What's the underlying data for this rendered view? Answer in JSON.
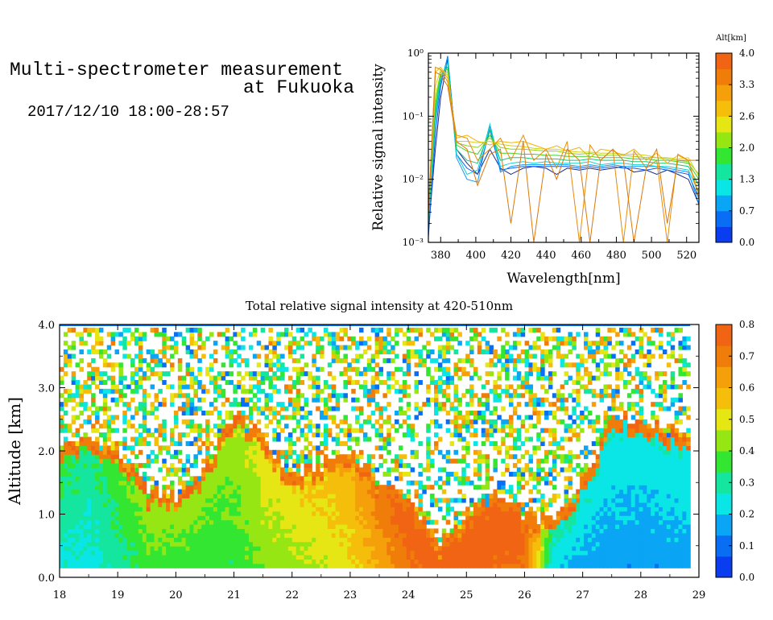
{
  "header": {
    "title_line1": "Multi-spectrometer measurement",
    "title_line2": "at Fukuoka",
    "subtitle": "2017/12/10 18:00-28:57"
  },
  "chart_data": [
    {
      "type": "line",
      "title": "",
      "xlabel": "Wavelength[nm]",
      "ylabel": "Relative signal intensity",
      "yscale": "log",
      "xlim": [
        373,
        527
      ],
      "ylim": [
        0.001,
        1
      ],
      "xticks": [
        "380",
        "400",
        "420",
        "440",
        "460",
        "480",
        "500",
        "520"
      ],
      "yticks": [
        "10⁻³",
        "10⁻²",
        "10⁻¹",
        "10⁰"
      ],
      "colorbar": {
        "label": "Alt[km]",
        "ticks": [
          "0.0",
          "0.7",
          "1.3",
          "2.0",
          "2.6",
          "3.3",
          "4.0"
        ],
        "colors": [
          "#0a3cf0",
          "#0a6ef5",
          "#0aa5f5",
          "#0ae6e6",
          "#14e6a0",
          "#32e632",
          "#96e614",
          "#e6e614",
          "#f5be0a",
          "#f5a00a",
          "#f07d0a",
          "#f06414"
        ]
      },
      "series": [
        {
          "color": "#1a2a8a",
          "x": [
            373,
            377,
            380,
            384,
            389,
            395,
            401,
            408,
            414,
            420,
            427,
            433,
            440,
            446,
            452,
            459,
            465,
            471,
            478,
            484,
            490,
            497,
            503,
            509,
            515,
            521,
            527
          ],
          "y": [
            0.0015,
            0.03,
            0.2,
            0.8,
            0.03,
            0.018,
            0.012,
            0.03,
            0.015,
            0.012,
            0.015,
            0.016,
            0.015,
            0.012,
            0.015,
            0.014,
            0.015,
            0.014,
            0.015,
            0.016,
            0.013,
            0.014,
            0.012,
            0.014,
            0.012,
            0.01,
            0.004
          ]
        },
        {
          "color": "#0a5af0",
          "x": [
            373,
            377,
            380,
            384,
            389,
            395,
            401,
            408,
            414,
            420,
            427,
            433,
            440,
            446,
            452,
            459,
            465,
            471,
            478,
            484,
            490,
            497,
            503,
            509,
            515,
            521,
            527
          ],
          "y": [
            0.0012,
            0.05,
            0.3,
            0.9,
            0.025,
            0.015,
            0.012,
            0.06,
            0.014,
            0.015,
            0.016,
            0.016,
            0.016,
            0.016,
            0.016,
            0.015,
            0.016,
            0.015,
            0.016,
            0.015,
            0.015,
            0.014,
            0.015,
            0.014,
            0.013,
            0.012,
            0.005
          ]
        },
        {
          "color": "#0a96f5",
          "x": [
            373,
            377,
            380,
            384,
            389,
            395,
            401,
            408,
            414,
            420,
            427,
            433,
            440,
            446,
            452,
            459,
            465,
            471,
            478,
            484,
            490,
            497,
            503,
            509,
            515,
            521,
            527
          ],
          "y": [
            0.002,
            0.08,
            0.35,
            0.85,
            0.022,
            0.01,
            0.009,
            0.07,
            0.013,
            0.016,
            0.017,
            0.017,
            0.017,
            0.017,
            0.017,
            0.016,
            0.017,
            0.016,
            0.017,
            0.016,
            0.016,
            0.016,
            0.016,
            0.015,
            0.014,
            0.013,
            0.004
          ]
        },
        {
          "color": "#10d2d2",
          "x": [
            373,
            377,
            380,
            384,
            389,
            395,
            401,
            408,
            414,
            420,
            427,
            433,
            440,
            446,
            452,
            459,
            465,
            471,
            478,
            484,
            490,
            497,
            503,
            509,
            515,
            521,
            527
          ],
          "y": [
            0.002,
            0.1,
            0.4,
            0.7,
            0.025,
            0.012,
            0.014,
            0.075,
            0.016,
            0.018,
            0.019,
            0.018,
            0.019,
            0.018,
            0.018,
            0.018,
            0.019,
            0.017,
            0.018,
            0.018,
            0.017,
            0.017,
            0.016,
            0.016,
            0.015,
            0.014,
            0.006
          ]
        },
        {
          "color": "#14c878",
          "x": [
            373,
            377,
            380,
            384,
            389,
            395,
            401,
            408,
            414,
            420,
            427,
            433,
            440,
            446,
            452,
            459,
            465,
            471,
            478,
            484,
            490,
            497,
            503,
            509,
            515,
            521,
            527
          ],
          "y": [
            0.0025,
            0.12,
            0.45,
            0.6,
            0.03,
            0.02,
            0.018,
            0.06,
            0.02,
            0.022,
            0.022,
            0.021,
            0.021,
            0.021,
            0.02,
            0.02,
            0.021,
            0.02,
            0.02,
            0.02,
            0.019,
            0.019,
            0.018,
            0.018,
            0.017,
            0.016,
            0.008
          ]
        },
        {
          "color": "#3cd228",
          "x": [
            373,
            377,
            380,
            384,
            389,
            395,
            401,
            408,
            414,
            420,
            427,
            433,
            440,
            446,
            452,
            459,
            465,
            471,
            478,
            484,
            490,
            497,
            503,
            509,
            515,
            521,
            527
          ],
          "y": [
            0.003,
            0.15,
            0.5,
            0.55,
            0.035,
            0.028,
            0.025,
            0.05,
            0.026,
            0.026,
            0.025,
            0.025,
            0.024,
            0.024,
            0.023,
            0.023,
            0.023,
            0.022,
            0.022,
            0.022,
            0.021,
            0.021,
            0.02,
            0.02,
            0.019,
            0.018,
            0.01
          ]
        },
        {
          "color": "#8cd21e",
          "x": [
            373,
            377,
            380,
            384,
            389,
            395,
            401,
            408,
            414,
            420,
            427,
            433,
            440,
            446,
            452,
            459,
            465,
            471,
            478,
            484,
            490,
            497,
            503,
            509,
            515,
            521,
            527
          ],
          "y": [
            0.003,
            0.2,
            0.5,
            0.5,
            0.038,
            0.034,
            0.032,
            0.045,
            0.032,
            0.03,
            0.03,
            0.029,
            0.028,
            0.028,
            0.026,
            0.025,
            0.026,
            0.024,
            0.024,
            0.024,
            0.023,
            0.022,
            0.022,
            0.021,
            0.02,
            0.019,
            0.012
          ]
        },
        {
          "color": "#d2d21e",
          "x": [
            373,
            377,
            380,
            384,
            389,
            395,
            401,
            408,
            414,
            420,
            427,
            433,
            440,
            446,
            452,
            459,
            465,
            471,
            478,
            484,
            490,
            497,
            503,
            509,
            515,
            521,
            527
          ],
          "y": [
            0.003,
            0.3,
            0.55,
            0.45,
            0.04,
            0.04,
            0.038,
            0.04,
            0.036,
            0.034,
            0.033,
            0.031,
            0.03,
            0.03,
            0.028,
            0.027,
            0.027,
            0.026,
            0.026,
            0.025,
            0.025,
            0.024,
            0.022,
            0.022,
            0.021,
            0.022,
            0.011
          ]
        },
        {
          "color": "#f0b40a",
          "x": [
            373,
            377,
            380,
            384,
            389,
            395,
            401,
            408,
            414,
            420,
            427,
            433,
            440,
            446,
            452,
            459,
            465,
            471,
            478,
            484,
            490,
            497,
            503,
            509,
            515,
            521,
            527
          ],
          "y": [
            0.003,
            0.5,
            0.6,
            0.4,
            0.045,
            0.05,
            0.04,
            0.035,
            0.04,
            0.038,
            0.04,
            0.035,
            0.03,
            0.034,
            0.028,
            0.032,
            0.022,
            0.03,
            0.028,
            0.024,
            0.03,
            0.02,
            0.026,
            0.018,
            0.024,
            0.02,
            0.006
          ]
        },
        {
          "color": "#e68c0a",
          "x": [
            373,
            377,
            380,
            384,
            389,
            395,
            401,
            408,
            414,
            420,
            427,
            433,
            440,
            446,
            452,
            459,
            465,
            471,
            478,
            484,
            490,
            497,
            503,
            509,
            515,
            521,
            527
          ],
          "y": [
            0.003,
            0.6,
            0.55,
            0.35,
            0.05,
            0.045,
            0.02,
            0.03,
            0.045,
            0.02,
            0.05,
            0.02,
            0.03,
            0.015,
            0.04,
            0.001,
            0.035,
            0.02,
            0.03,
            0.001,
            0.028,
            0.015,
            0.02,
            0.001,
            0.025,
            0.02,
            0.005
          ]
        },
        {
          "color": "#dc780a",
          "x": [
            373,
            377,
            380,
            384,
            389,
            395,
            401,
            408,
            414,
            420,
            427,
            433,
            440,
            446,
            452,
            459,
            465,
            471,
            478,
            484,
            490,
            497,
            503,
            509,
            515,
            521,
            527
          ],
          "y": [
            0.003,
            0.5,
            0.45,
            0.3,
            0.04,
            0.03,
            0.008,
            0.025,
            0.03,
            0.002,
            0.04,
            0.001,
            0.025,
            0.01,
            0.03,
            0.02,
            0.001,
            0.02,
            0.03,
            0.02,
            0.001,
            0.015,
            0.03,
            0.002,
            0.02,
            0.02,
            0.02
          ]
        }
      ]
    },
    {
      "type": "heatmap",
      "title": "Total relative signal intensity at 420-510nm",
      "xlabel": "",
      "ylabel": "Altitude [km]",
      "xlim": [
        18,
        29
      ],
      "ylim": [
        0,
        4
      ],
      "xticks": [
        "18",
        "19",
        "20",
        "21",
        "22",
        "23",
        "24",
        "25",
        "26",
        "27",
        "28",
        "29"
      ],
      "yticks": [
        "0.0",
        "1.0",
        "2.0",
        "3.0",
        "4.0"
      ],
      "colorbar": {
        "label": "",
        "ticks": [
          "0.0",
          "0.1",
          "0.2",
          "0.3",
          "0.4",
          "0.5",
          "0.6",
          "0.7",
          "0.8"
        ],
        "colors": [
          "#0a3cf0",
          "#0a6ef5",
          "#0aa5f5",
          "#0ae6e6",
          "#14e6a0",
          "#32e632",
          "#96e614",
          "#e6e614",
          "#f5be0a",
          "#f5a00a",
          "#f07d0a",
          "#f06414"
        ]
      },
      "time_hours": [
        18.0,
        18.5,
        19.0,
        19.5,
        20.0,
        20.5,
        21.0,
        21.5,
        22.0,
        22.5,
        23.0,
        23.5,
        24.0,
        24.5,
        25.0,
        25.5,
        26.0,
        26.5,
        27.0,
        27.5,
        28.0,
        28.5
      ],
      "cloud_base_km": [
        2.1,
        2.2,
        2.0,
        1.4,
        1.3,
        1.7,
        2.6,
        2.2,
        1.6,
        1.8,
        2.0,
        1.5,
        1.3,
        0.5,
        1.0,
        1.3,
        1.0,
        0.9,
        1.5,
        2.6,
        2.5,
        2.3
      ],
      "low_level_intensity": [
        0.25,
        0.22,
        0.28,
        0.35,
        0.35,
        0.33,
        0.34,
        0.4,
        0.42,
        0.45,
        0.5,
        0.6,
        0.7,
        0.75,
        0.75,
        0.72,
        0.7,
        0.2,
        0.16,
        0.15,
        0.14,
        0.15
      ]
    }
  ]
}
